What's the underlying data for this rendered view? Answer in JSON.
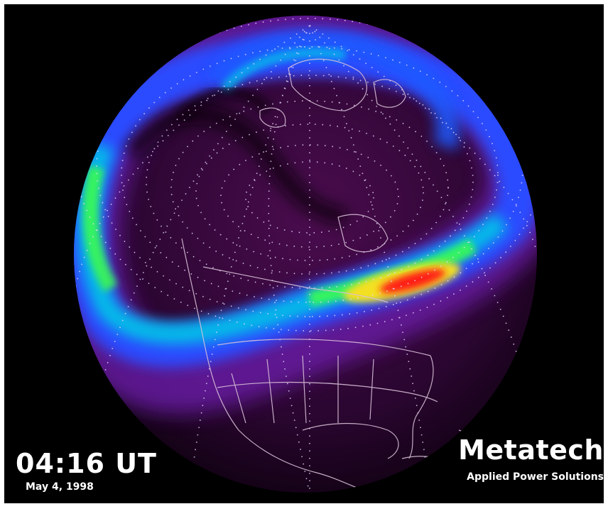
{
  "overlay": {
    "time": "04:16 UT",
    "date": "May 4, 1998"
  },
  "branding": {
    "name": "Metatech",
    "tagline": "Applied Power Solutions"
  },
  "map": {
    "projection": "orthographic-globe",
    "centered_on": "north-polar-region",
    "features": [
      "auroral-oval",
      "continent-outlines",
      "graticule-dots"
    ],
    "colors": {
      "background": "#000000",
      "globe": "#2a0630",
      "oval_low": "#7a22c8",
      "oval_mid": "#2a5cff",
      "oval_cyan": "#00d0e6",
      "oval_green": "#3dff4a",
      "oval_yellow": "#f4e020",
      "oval_peak": "#ff1a14",
      "coastline": "#d8c0d8",
      "grid_dots": "#e8d8ff"
    }
  }
}
